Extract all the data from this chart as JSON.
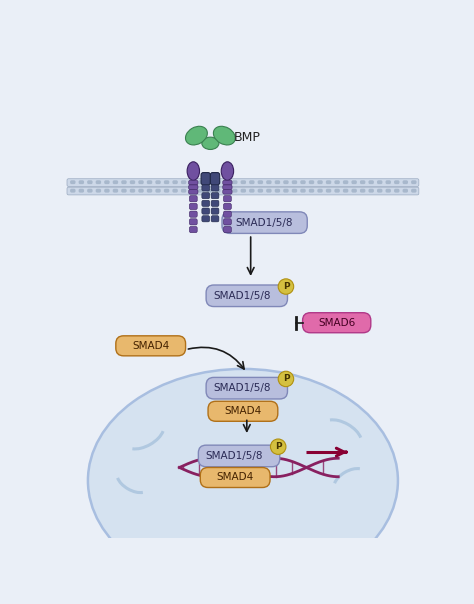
{
  "bg_color": "#eaeff7",
  "smad158_color": "#b8bedd",
  "smad4_color": "#e8b86d",
  "smad6_color": "#e06aaa",
  "p_circle_color": "#d4c040",
  "receptor_purple": "#7050a0",
  "receptor_dark": "#404878",
  "bmp_green": "#60b878",
  "arrow_color": "#1a1a1a",
  "dna_color": "#882060",
  "nucleus_face": "#d5e2f0",
  "nucleus_edge": "#a8bee0",
  "membrane_face": "#dae4f2",
  "membrane_dot": "#a8b8cc",
  "smad6_label": "SMAD6",
  "bmp_label": "BMP"
}
